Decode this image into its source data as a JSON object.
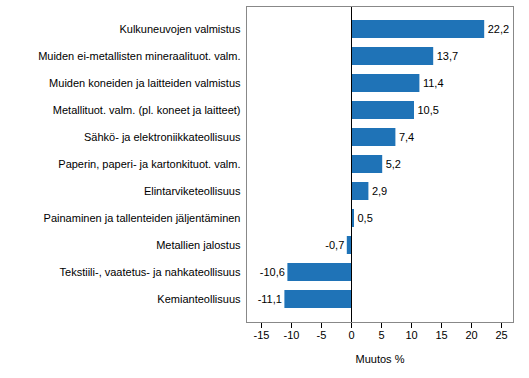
{
  "chart_data": {
    "type": "bar",
    "orientation": "horizontal",
    "x_label": "Muutos %",
    "categories": [
      "Kulkuneuvojen valmistus",
      "Muiden ei-metallisten mineraalituot. valm.",
      "Muiden koneiden ja laitteiden valmistus",
      "Metallituot. valm. (pl. koneet ja laitteet)",
      "Sähkö- ja elektroniikkateollisuus",
      "Paperin, paperi- ja kartonkituot. valm.",
      "Elintarviketeollisuus",
      "Painaminen ja tallenteiden jäljentäminen",
      "Metallien jalostus",
      "Tekstiili-, vaatetus- ja nahkateollisuus",
      "Kemianteollisuus"
    ],
    "values": [
      22.2,
      13.7,
      11.4,
      10.5,
      7.4,
      5.2,
      2.9,
      0.5,
      -0.7,
      -10.6,
      -11.1
    ],
    "value_labels": [
      "22,2",
      "13,7",
      "11,4",
      "10,5",
      "7,4",
      "5,2",
      "2,9",
      "0,5",
      "-0,7",
      "-10,6",
      "-11,1"
    ],
    "data_labels": true,
    "color": "#1f73b7",
    "xlim": [
      -17.5,
      27
    ],
    "xticks": [
      -15,
      -10,
      -5,
      0,
      5,
      10,
      15,
      20,
      25
    ],
    "grid": false
  }
}
